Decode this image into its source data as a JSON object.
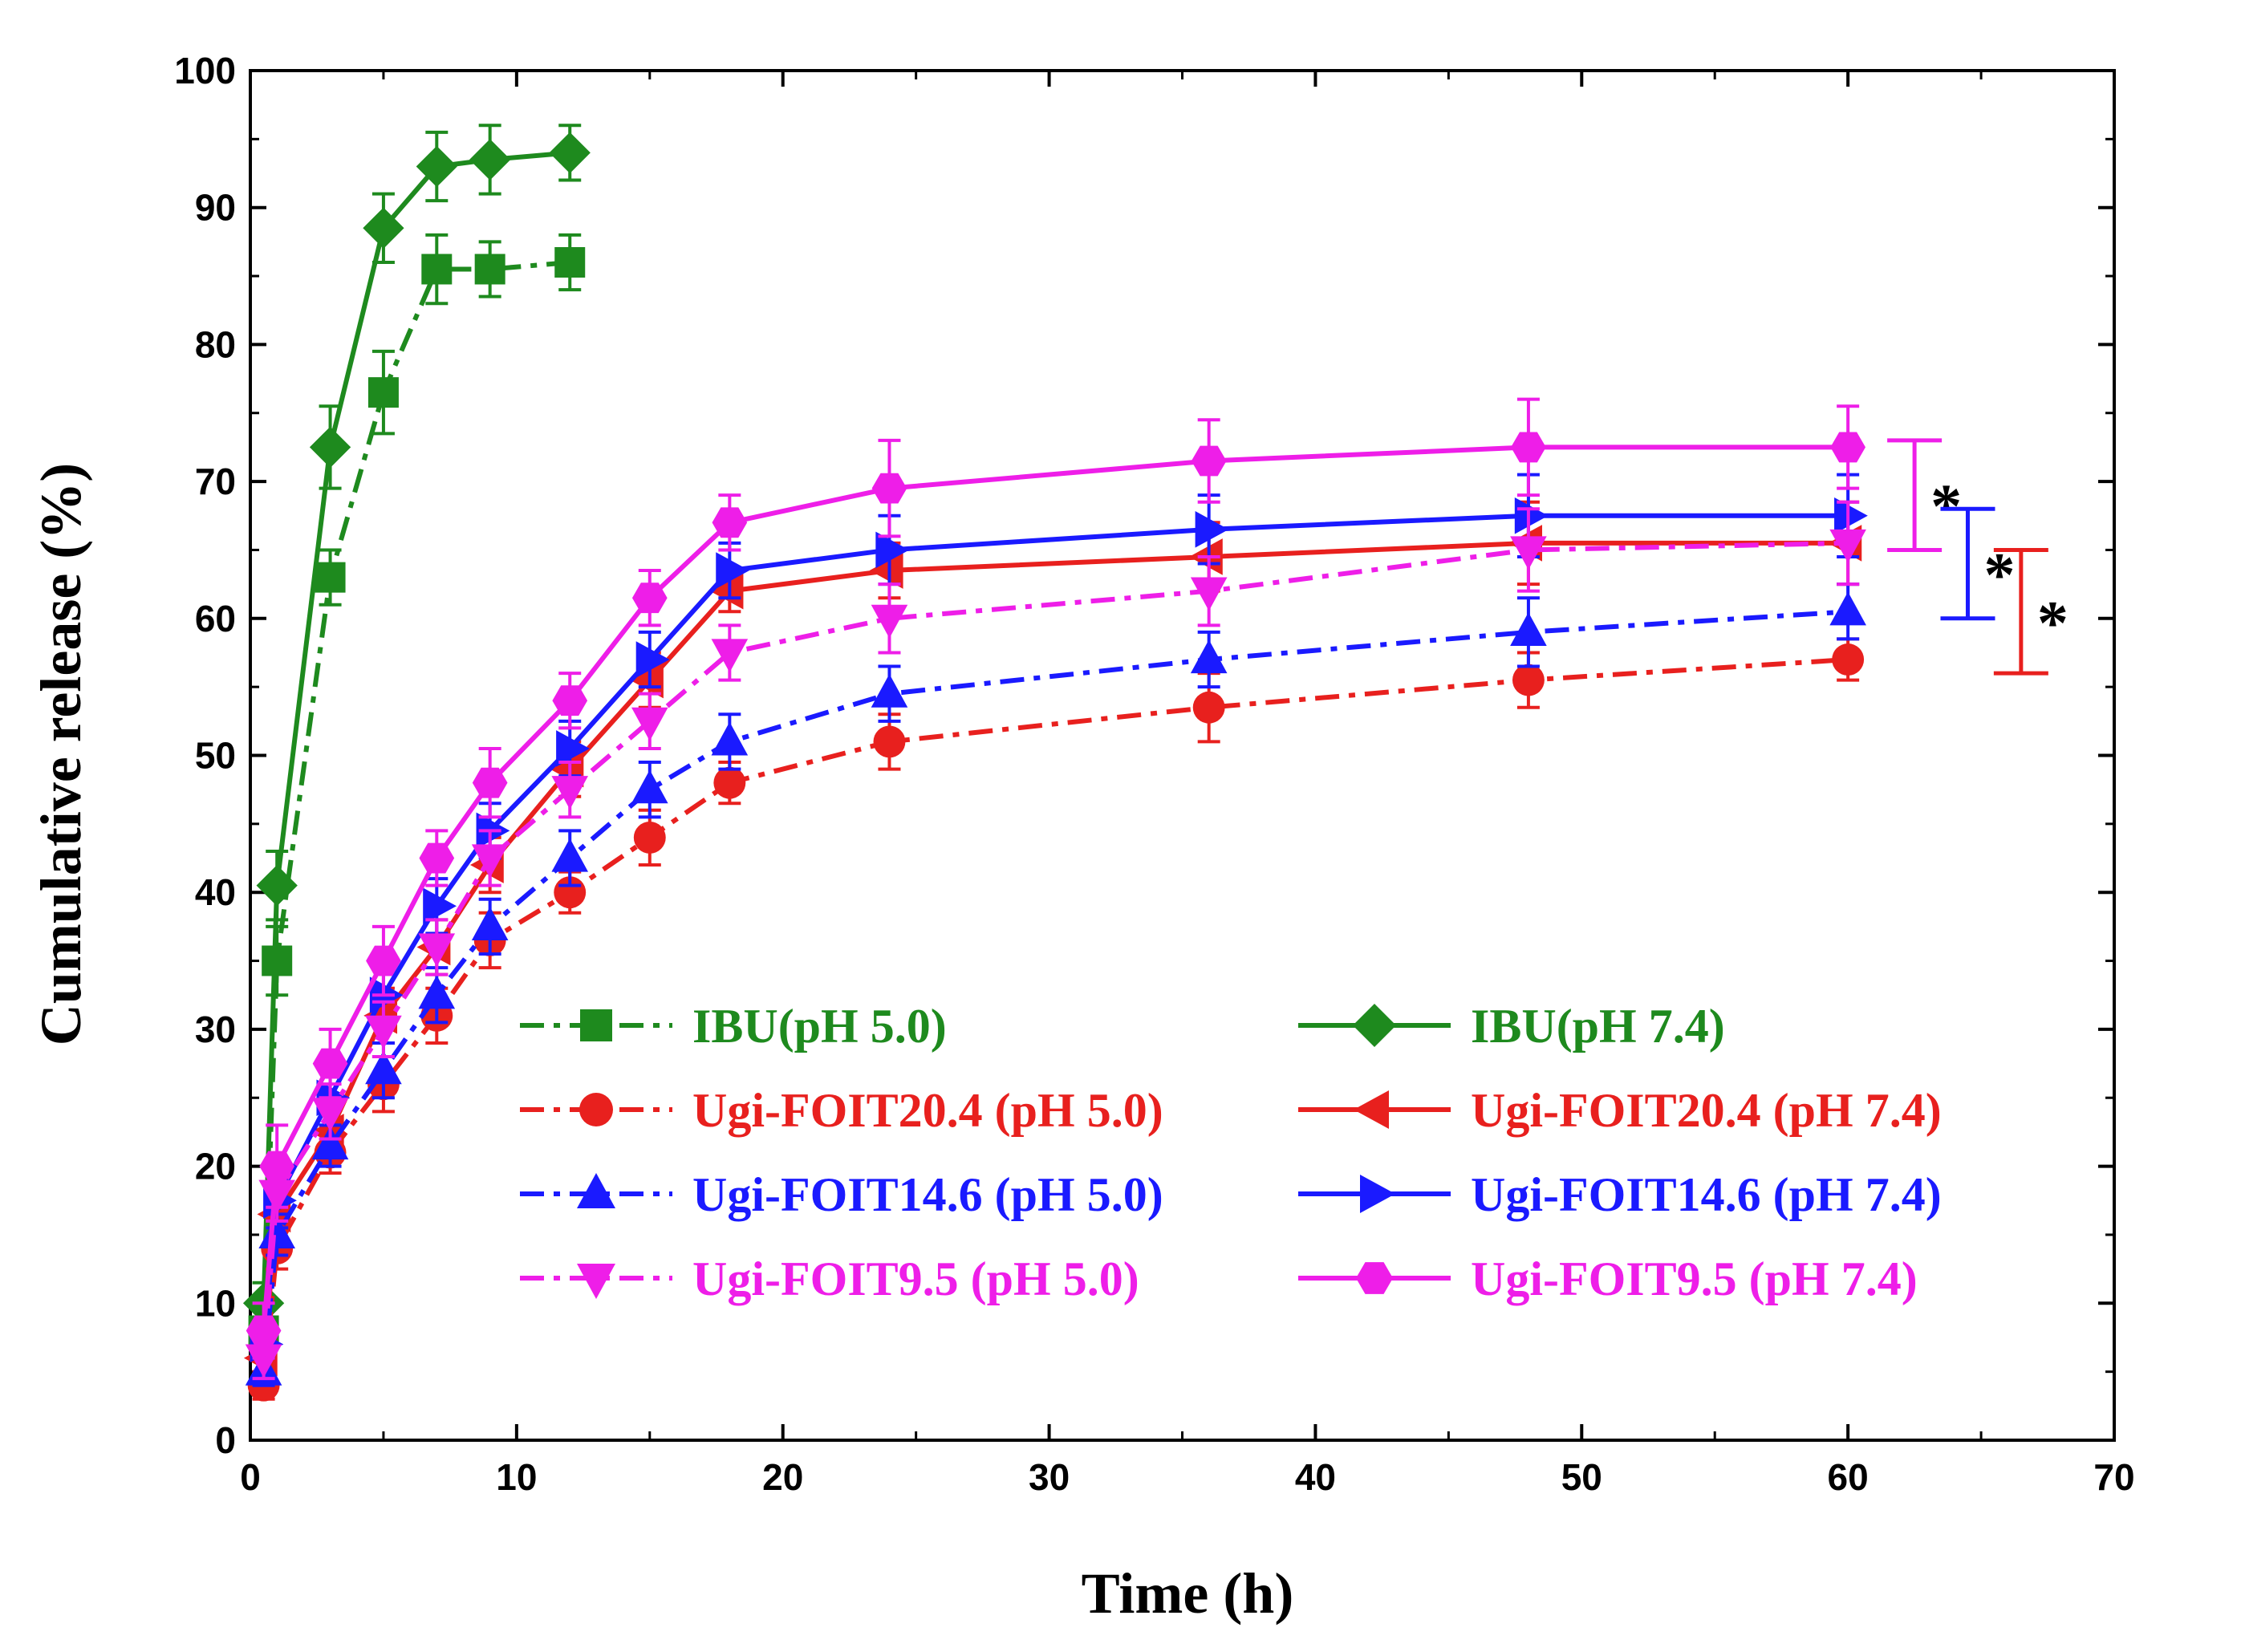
{
  "chart_data": {
    "type": "line",
    "title": "",
    "xlabel": "Time (h)",
    "ylabel": "Cumulative release (%)",
    "xlim": [
      0,
      70
    ],
    "ylim": [
      0,
      100
    ],
    "xticks": [
      0,
      10,
      20,
      30,
      40,
      50,
      60,
      70
    ],
    "yticks": [
      0,
      10,
      20,
      30,
      40,
      50,
      60,
      70,
      80,
      90,
      100
    ],
    "legend_position": "center-bottom",
    "series": [
      {
        "name": "IBU(pH 5.0)",
        "color": "#1e8a1e",
        "style": "dashdot",
        "marker": "square",
        "x": [
          0.5,
          1,
          3,
          5,
          7,
          9,
          12
        ],
        "y": [
          8,
          35,
          63,
          76.5,
          85.5,
          85.5,
          86
        ],
        "err": [
          1.5,
          2.5,
          2,
          3,
          2.5,
          2,
          2
        ]
      },
      {
        "name": "IBU(pH 7.4)",
        "color": "#1e8a1e",
        "style": "solid",
        "marker": "diamond",
        "x": [
          0.5,
          1,
          3,
          5,
          7,
          9,
          12
        ],
        "y": [
          10,
          40.5,
          72.5,
          88.5,
          93,
          93.5,
          94
        ],
        "err": [
          1.5,
          2.5,
          3,
          2.5,
          2.5,
          2.5,
          2
        ]
      },
      {
        "name": "Ugi-FOIT20.4 (pH 5.0)",
        "color": "#e8201e",
        "style": "dashdot",
        "marker": "circle",
        "x": [
          0.5,
          1,
          3,
          5,
          7,
          9,
          12,
          15,
          18,
          24,
          36,
          48,
          60
        ],
        "y": [
          4,
          14,
          21,
          26,
          31,
          36.5,
          40,
          44,
          48,
          51,
          53.5,
          55.5,
          57
        ],
        "err": [
          1,
          1.5,
          1.5,
          2,
          2,
          2,
          1.5,
          2,
          1.5,
          2,
          2.5,
          2,
          1.5
        ]
      },
      {
        "name": "Ugi-FOIT20.4 (pH 7.4)",
        "color": "#e8201e",
        "style": "solid",
        "marker": "triangle-left",
        "x": [
          0.5,
          1,
          3,
          5,
          7,
          9,
          12,
          15,
          18,
          24,
          36,
          48,
          60
        ],
        "y": [
          6,
          16.5,
          22.5,
          31,
          36,
          42,
          49,
          55.5,
          62,
          63.5,
          64.5,
          65.5,
          65.5
        ],
        "err": [
          1,
          2,
          2,
          2,
          2,
          2,
          2,
          2,
          1.5,
          2,
          2.5,
          3,
          3
        ]
      },
      {
        "name": "Ugi-FOIT14.6 (pH 5.0)",
        "color": "#1a1aff",
        "style": "dashdot",
        "marker": "triangle-up",
        "x": [
          0.5,
          1,
          3,
          5,
          7,
          9,
          12,
          15,
          18,
          24,
          36,
          48,
          60
        ],
        "y": [
          5,
          15,
          21.5,
          27,
          32.5,
          37.5,
          42.5,
          47.5,
          51,
          54.5,
          57,
          59,
          60.5
        ],
        "err": [
          1,
          1.5,
          1.5,
          2,
          2,
          2,
          2,
          2,
          2,
          2,
          2,
          2.5,
          2
        ]
      },
      {
        "name": "Ugi-FOIT14.6 (pH 7.4)",
        "color": "#1a1aff",
        "style": "solid",
        "marker": "triangle-right",
        "x": [
          0.5,
          1,
          3,
          5,
          7,
          9,
          12,
          15,
          18,
          24,
          36,
          48,
          60
        ],
        "y": [
          7,
          17.5,
          25,
          32.5,
          39,
          44.5,
          50.5,
          57,
          63.5,
          65,
          66.5,
          67.5,
          67.5
        ],
        "err": [
          1,
          2,
          2,
          2,
          2,
          2,
          2,
          2,
          2,
          2.5,
          2.5,
          3,
          3
        ]
      },
      {
        "name": "Ugi-FOIT9.5 (pH 5.0)",
        "color": "#ee1ee8",
        "style": "dashdot",
        "marker": "triangle-down",
        "x": [
          0.5,
          1,
          3,
          5,
          7,
          9,
          12,
          15,
          18,
          24,
          36,
          48,
          60
        ],
        "y": [
          6,
          18,
          24,
          30,
          36,
          42.5,
          47.5,
          52.5,
          57.5,
          60,
          62,
          65,
          65.5
        ],
        "err": [
          1.5,
          2,
          2,
          2,
          2,
          2,
          2,
          2,
          2,
          2.5,
          2.5,
          3,
          3
        ]
      },
      {
        "name": "Ugi-FOIT9.5 (pH 7.4)",
        "color": "#ee1ee8",
        "style": "solid",
        "marker": "hexagon",
        "x": [
          0.5,
          1,
          3,
          5,
          7,
          9,
          12,
          15,
          18,
          24,
          36,
          48,
          60
        ],
        "y": [
          8,
          20,
          27.5,
          35,
          42.5,
          48,
          54,
          61.5,
          67,
          69.5,
          71.5,
          72.5,
          72.5
        ],
        "err": [
          2,
          3,
          2.5,
          2.5,
          2,
          2.5,
          2,
          2,
          2,
          3.5,
          3,
          3.5,
          3
        ]
      }
    ],
    "significance": [
      {
        "label": "*",
        "color": "#ee1ee8",
        "y_top": 73,
        "y_bottom": 65,
        "x": 62.5
      },
      {
        "label": "*",
        "color": "#1a1aff",
        "y_top": 68,
        "y_bottom": 60,
        "x": 64.5
      },
      {
        "label": "*",
        "color": "#e8201e",
        "y_top": 65,
        "y_bottom": 56,
        "x": 66.5
      }
    ]
  }
}
